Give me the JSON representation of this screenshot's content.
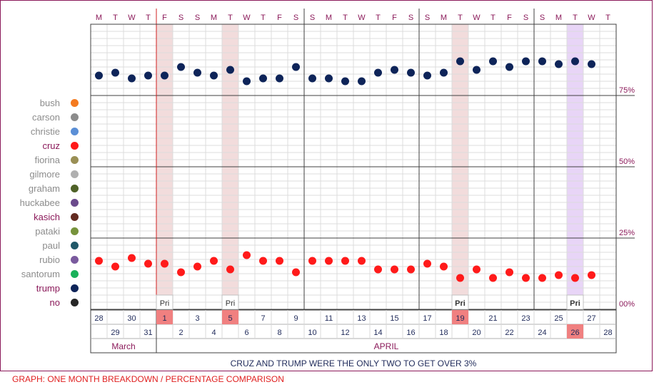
{
  "chart_data": {
    "type": "scatter",
    "weekday_letters": [
      "M",
      "T",
      "W",
      "T",
      "F",
      "S",
      "S",
      "M",
      "T",
      "W",
      "T",
      "F",
      "S",
      "S",
      "M",
      "T",
      "W",
      "T",
      "F",
      "S",
      "S",
      "M",
      "T",
      "W",
      "T",
      "F",
      "S",
      "S",
      "M",
      "T",
      "W",
      "T"
    ],
    "dates_row1": [
      28,
      30,
      1,
      3,
      5,
      7,
      9,
      11,
      13,
      15,
      17,
      19,
      21,
      23,
      25,
      27
    ],
    "dates_row2": [
      29,
      31,
      2,
      4,
      6,
      8,
      10,
      12,
      14,
      16,
      18,
      20,
      22,
      24,
      26,
      28
    ],
    "months": [
      "March",
      "APRIL"
    ],
    "y_ticks": [
      "75%",
      "50%",
      "25%",
      "00%"
    ],
    "ylim": [
      0,
      100
    ],
    "primary_label": "Pri",
    "series": [
      {
        "name": "trump",
        "color": "#0e2459",
        "values": [
          82,
          83,
          81,
          82,
          82,
          85,
          83,
          82,
          84,
          80,
          81,
          81,
          85,
          81,
          81,
          80,
          80,
          83,
          84,
          83,
          82,
          83,
          87,
          84,
          87,
          85,
          87,
          87,
          86,
          87,
          86,
          null
        ]
      },
      {
        "name": "cruz",
        "color": "#ff1a1a",
        "values": [
          17,
          15,
          18,
          16,
          16,
          13,
          15,
          17,
          14,
          19,
          17,
          17,
          13,
          17,
          17,
          17,
          17,
          14,
          14,
          14,
          16,
          15,
          11,
          14,
          11,
          13,
          11,
          11,
          12,
          11,
          12,
          null
        ]
      }
    ],
    "legend": [
      {
        "name": "bush",
        "color": "#f47a1f",
        "highlight": false
      },
      {
        "name": "carson",
        "color": "#8c8c8c",
        "highlight": false
      },
      {
        "name": "christie",
        "color": "#5b8fd6",
        "highlight": false
      },
      {
        "name": "cruz",
        "color": "#ff1a1a",
        "highlight": true
      },
      {
        "name": "fiorina",
        "color": "#9a8f55",
        "highlight": false
      },
      {
        "name": "gilmore",
        "color": "#b0b0b0",
        "highlight": false
      },
      {
        "name": "graham",
        "color": "#4f6228",
        "highlight": false
      },
      {
        "name": "huckabee",
        "color": "#6b4a8c",
        "highlight": false
      },
      {
        "name": "kasich",
        "color": "#632b21",
        "highlight": true
      },
      {
        "name": "pataki",
        "color": "#77933c",
        "highlight": false
      },
      {
        "name": "paul",
        "color": "#215868",
        "highlight": false
      },
      {
        "name": "rubio",
        "color": "#7a5a9e",
        "highlight": false
      },
      {
        "name": "santorum",
        "color": "#1ab15a",
        "highlight": false
      },
      {
        "name": "trump",
        "color": "#0e2459",
        "highlight": true
      },
      {
        "name": "no",
        "color": "#262626",
        "highlight": true
      }
    ],
    "caption": "CRUZ AND TRUMP WERE THE ONLY TWO TO GET OVER 3%",
    "footer": "GRAPH: ONE MONTH BREAKDOWN / PERCENTAGE COMPARISON"
  }
}
